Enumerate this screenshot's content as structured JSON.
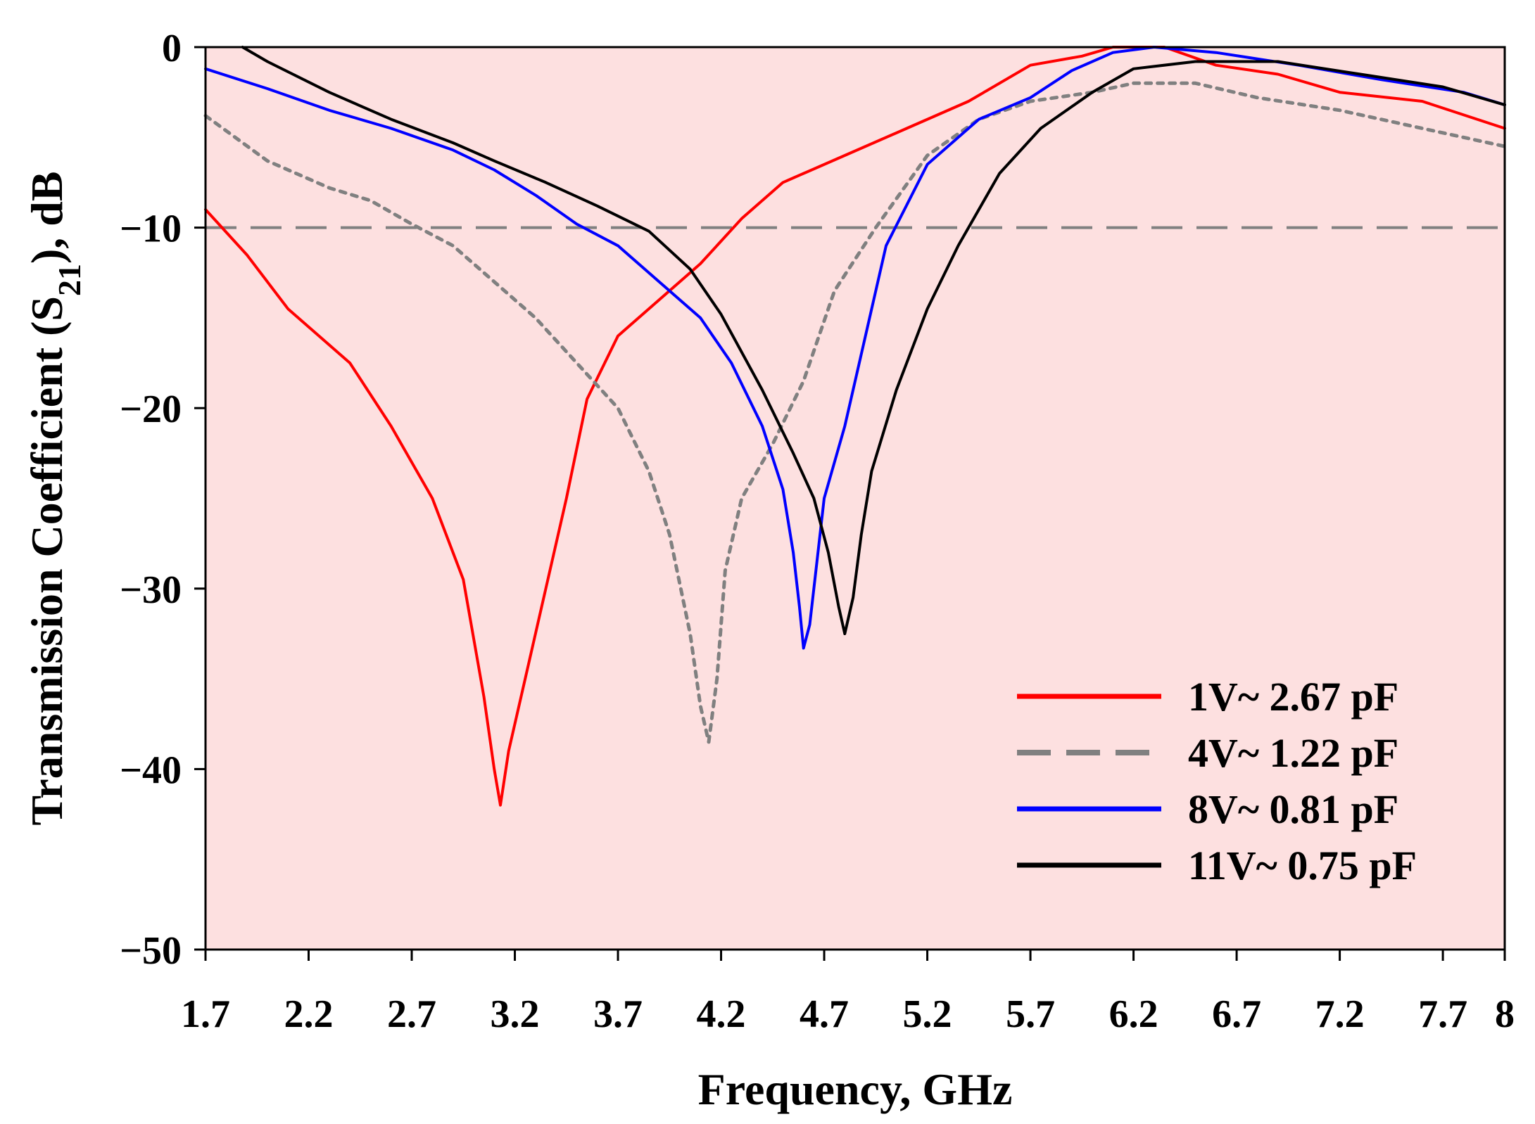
{
  "chart_data": {
    "type": "line",
    "title": "",
    "xlabel": "Frequency, GHz",
    "ylabel_main": "Transmission Coefficient (S",
    "ylabel_sub": "21",
    "ylabel_tail": "), dB",
    "xlim": [
      1.7,
      8
    ],
    "ylim": [
      -50,
      0
    ],
    "xticks": [
      1.7,
      2.2,
      2.7,
      3.2,
      3.7,
      4.2,
      4.7,
      5.2,
      5.7,
      6.2,
      6.7,
      7.2,
      7.7,
      8
    ],
    "xtick_labels": [
      "1.7",
      "2.2",
      "2.7",
      "3.2",
      "3.7",
      "4.2",
      "4.7",
      "5.2",
      "5.7",
      "6.2",
      "6.7",
      "7.2",
      "7.7",
      "8"
    ],
    "yticks": [
      0,
      -10,
      -20,
      -30,
      -40,
      -50
    ],
    "ytick_labels": [
      "0",
      "−10",
      "−20",
      "−30",
      "−40",
      "−50"
    ],
    "plot_background": "#fde0e0",
    "reference_line": {
      "y": -10,
      "color": "#808080",
      "style": "dashed"
    },
    "legend_position": "bottom-right",
    "series": [
      {
        "name": "1V~ 2.67 pF",
        "color": "#ff0000",
        "style": "solid",
        "points": [
          [
            1.7,
            -9
          ],
          [
            1.9,
            -11.5
          ],
          [
            2.1,
            -14.5
          ],
          [
            2.4,
            -17.5
          ],
          [
            2.6,
            -21
          ],
          [
            2.8,
            -25
          ],
          [
            2.95,
            -29.5
          ],
          [
            3.05,
            -36
          ],
          [
            3.1,
            -40
          ],
          [
            3.13,
            -42
          ],
          [
            3.17,
            -39
          ],
          [
            3.25,
            -35
          ],
          [
            3.35,
            -30
          ],
          [
            3.45,
            -25
          ],
          [
            3.55,
            -19.5
          ],
          [
            3.7,
            -16
          ],
          [
            3.9,
            -14
          ],
          [
            4.1,
            -12
          ],
          [
            4.3,
            -9.5
          ],
          [
            4.5,
            -7.5
          ],
          [
            4.8,
            -6
          ],
          [
            5.1,
            -4.5
          ],
          [
            5.4,
            -3
          ],
          [
            5.7,
            -1
          ],
          [
            5.95,
            -0.5
          ],
          [
            6.1,
            0
          ],
          [
            6.35,
            0
          ],
          [
            6.6,
            -1
          ],
          [
            6.9,
            -1.5
          ],
          [
            7.2,
            -2.5
          ],
          [
            7.6,
            -3
          ],
          [
            8.0,
            -4.5
          ]
        ]
      },
      {
        "name": "4V~ 1.22 pF",
        "color": "#808080",
        "style": "dashed",
        "points": [
          [
            1.7,
            -3.8
          ],
          [
            2.0,
            -6.3
          ],
          [
            2.3,
            -7.8
          ],
          [
            2.5,
            -8.5
          ],
          [
            2.7,
            -9.8
          ],
          [
            2.9,
            -11
          ],
          [
            3.1,
            -13
          ],
          [
            3.3,
            -15
          ],
          [
            3.5,
            -17.5
          ],
          [
            3.7,
            -20
          ],
          [
            3.85,
            -23.5
          ],
          [
            3.95,
            -27
          ],
          [
            4.05,
            -32.5
          ],
          [
            4.1,
            -36.5
          ],
          [
            4.14,
            -38.5
          ],
          [
            4.18,
            -35
          ],
          [
            4.22,
            -29
          ],
          [
            4.3,
            -25
          ],
          [
            4.45,
            -22
          ],
          [
            4.6,
            -18.5
          ],
          [
            4.75,
            -13.5
          ],
          [
            4.95,
            -10
          ],
          [
            5.2,
            -6
          ],
          [
            5.45,
            -4
          ],
          [
            5.7,
            -3
          ],
          [
            6.0,
            -2.5
          ],
          [
            6.2,
            -2
          ],
          [
            6.5,
            -2
          ],
          [
            6.8,
            -2.8
          ],
          [
            7.2,
            -3.5
          ],
          [
            7.6,
            -4.5
          ],
          [
            8.0,
            -5.5
          ]
        ]
      },
      {
        "name": "8V~ 0.81 pF",
        "color": "#0000ff",
        "style": "solid",
        "points": [
          [
            1.7,
            -1.2
          ],
          [
            2.0,
            -2.3
          ],
          [
            2.3,
            -3.5
          ],
          [
            2.6,
            -4.5
          ],
          [
            2.9,
            -5.7
          ],
          [
            3.1,
            -6.8
          ],
          [
            3.3,
            -8.2
          ],
          [
            3.5,
            -9.8
          ],
          [
            3.7,
            -11
          ],
          [
            3.9,
            -13
          ],
          [
            4.1,
            -15
          ],
          [
            4.25,
            -17.5
          ],
          [
            4.4,
            -21
          ],
          [
            4.5,
            -24.5
          ],
          [
            4.55,
            -28
          ],
          [
            4.58,
            -31
          ],
          [
            4.6,
            -33.3
          ],
          [
            4.63,
            -32
          ],
          [
            4.66,
            -29
          ],
          [
            4.7,
            -25
          ],
          [
            4.8,
            -21
          ],
          [
            4.9,
            -16
          ],
          [
            5.0,
            -11
          ],
          [
            5.2,
            -6.5
          ],
          [
            5.45,
            -4
          ],
          [
            5.7,
            -2.8
          ],
          [
            5.9,
            -1.3
          ],
          [
            6.1,
            -0.3
          ],
          [
            6.3,
            0
          ],
          [
            6.6,
            -0.3
          ],
          [
            7.0,
            -1
          ],
          [
            7.4,
            -1.8
          ],
          [
            7.8,
            -2.5
          ],
          [
            8.0,
            -3.2
          ]
        ]
      },
      {
        "name": "11V~ 0.75 pF",
        "color": "#000000",
        "style": "solid",
        "points": [
          [
            1.88,
            0
          ],
          [
            2.0,
            -0.8
          ],
          [
            2.3,
            -2.5
          ],
          [
            2.6,
            -4
          ],
          [
            2.9,
            -5.3
          ],
          [
            3.1,
            -6.3
          ],
          [
            3.35,
            -7.5
          ],
          [
            3.6,
            -8.8
          ],
          [
            3.85,
            -10.2
          ],
          [
            4.05,
            -12.3
          ],
          [
            4.2,
            -14.8
          ],
          [
            4.4,
            -19
          ],
          [
            4.55,
            -22.5
          ],
          [
            4.65,
            -25
          ],
          [
            4.72,
            -28
          ],
          [
            4.77,
            -31
          ],
          [
            4.8,
            -32.5
          ],
          [
            4.84,
            -30.5
          ],
          [
            4.88,
            -27
          ],
          [
            4.93,
            -23.5
          ],
          [
            5.05,
            -19
          ],
          [
            5.2,
            -14.5
          ],
          [
            5.35,
            -11
          ],
          [
            5.55,
            -7
          ],
          [
            5.75,
            -4.5
          ],
          [
            6.0,
            -2.5
          ],
          [
            6.2,
            -1.2
          ],
          [
            6.5,
            -0.8
          ],
          [
            6.9,
            -0.8
          ],
          [
            7.3,
            -1.5
          ],
          [
            7.7,
            -2.2
          ],
          [
            8.0,
            -3.2
          ]
        ]
      }
    ]
  }
}
